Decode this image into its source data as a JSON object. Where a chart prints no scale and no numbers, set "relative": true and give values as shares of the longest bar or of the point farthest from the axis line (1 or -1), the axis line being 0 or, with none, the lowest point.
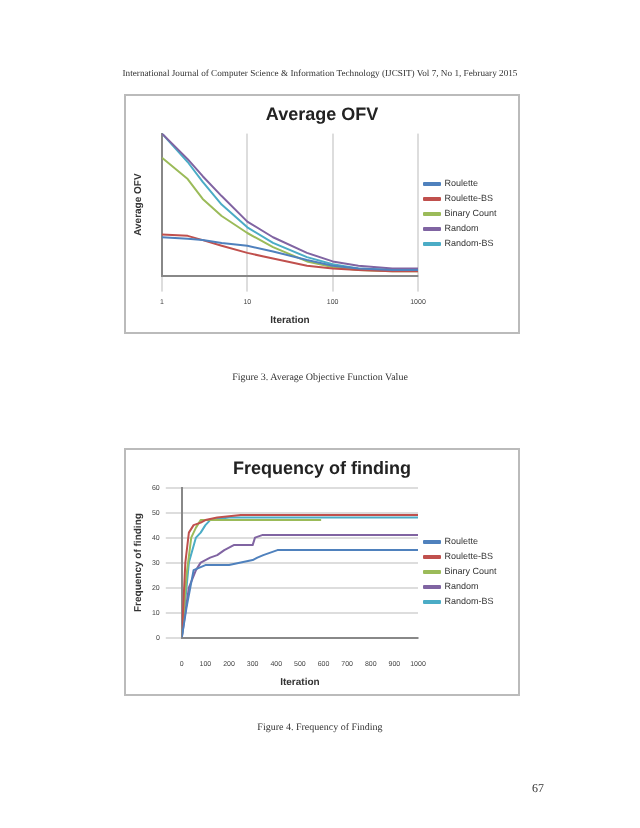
{
  "chart_data": [
    {
      "type": "line",
      "title": "Average OFV",
      "xlabel": "Iteration",
      "ylabel": "Average OFV",
      "relative": true,
      "log": "x",
      "xlim": [
        1,
        1000
      ],
      "xticks": [
        1,
        10,
        100,
        1000
      ],
      "grid": "x",
      "legend": "right",
      "marker": "none",
      "annotations": [
        "International Journal of Computer Science & Information Technology (IJCSIT) Vol 7, No 1, February 2015",
        "Figure 3. Average Objective Function Value"
      ],
      "x": [
        1,
        2,
        3,
        5,
        10,
        20,
        50,
        100,
        200,
        500,
        1000
      ],
      "series": [
        {
          "name": "Roulette",
          "color": "#4f81bd",
          "values": [
            0.27,
            0.26,
            0.25,
            0.23,
            0.21,
            0.17,
            0.11,
            0.07,
            0.05,
            0.04,
            0.04
          ]
        },
        {
          "name": "Roulette-BS",
          "color": "#c0504d",
          "values": [
            0.29,
            0.28,
            0.25,
            0.21,
            0.16,
            0.12,
            0.07,
            0.05,
            0.04,
            0.03,
            0.03
          ]
        },
        {
          "name": "Binary Count",
          "color": "#9bbb59",
          "values": [
            0.83,
            0.68,
            0.54,
            0.42,
            0.3,
            0.2,
            0.1,
            0.06,
            0.04,
            0.03,
            0.03
          ]
        },
        {
          "name": "Random",
          "color": "#8064a2",
          "values": [
            1,
            0.82,
            0.7,
            0.56,
            0.38,
            0.27,
            0.16,
            0.1,
            0.07,
            0.05,
            0.05
          ]
        },
        {
          "name": "Random-BS",
          "color": "#4bacc6",
          "values": [
            1,
            0.8,
            0.66,
            0.5,
            0.34,
            0.23,
            0.13,
            0.08,
            0.05,
            0.04,
            0.04
          ]
        }
      ]
    },
    {
      "type": "line",
      "title": "Frequency of finding",
      "xlabel": "Iteration",
      "ylabel": "Frequency of finding",
      "xlim": [
        0,
        1000
      ],
      "xticks": [
        0,
        100,
        200,
        300,
        400,
        500,
        600,
        700,
        800,
        900,
        1000
      ],
      "ylim": [
        0,
        60
      ],
      "yticks": [
        0,
        10,
        20,
        30,
        40,
        50,
        60
      ],
      "grid": "y",
      "legend": "right",
      "marker": "none",
      "annotations": [
        "Figure 4. Frequency of Finding",
        "67"
      ],
      "series": [
        {
          "name": "Roulette",
          "color": "#4f81bd",
          "x": [
            0,
            20,
            50,
            100,
            200,
            250,
            300,
            320,
            345,
            405,
            1000
          ],
          "values": [
            0,
            12,
            27,
            29,
            29,
            30,
            31,
            32,
            33,
            35,
            35
          ]
        },
        {
          "name": "Roulette-BS",
          "color": "#c0504d",
          "x": [
            0,
            15,
            30,
            50,
            80,
            100,
            150,
            250,
            1000
          ],
          "values": [
            0,
            30,
            42,
            45,
            46,
            47,
            48,
            49,
            49
          ]
        },
        {
          "name": "Binary Count",
          "color": "#9bbb59",
          "x": [
            0,
            20,
            40,
            60,
            80,
            590
          ],
          "values": [
            0,
            25,
            40,
            44,
            47,
            47
          ]
        },
        {
          "name": "Random",
          "color": "#8064a2",
          "x": [
            0,
            30,
            60,
            80,
            120,
            150,
            180,
            220,
            300,
            310,
            340,
            1000
          ],
          "values": [
            0,
            20,
            27,
            30,
            32,
            33,
            35,
            37,
            37,
            40,
            41,
            41
          ]
        },
        {
          "name": "Random-BS",
          "color": "#4bacc6",
          "x": [
            0,
            30,
            60,
            80,
            100,
            120,
            200,
            1000
          ],
          "values": [
            0,
            30,
            40,
            42,
            45,
            47,
            48,
            48
          ]
        }
      ]
    }
  ]
}
